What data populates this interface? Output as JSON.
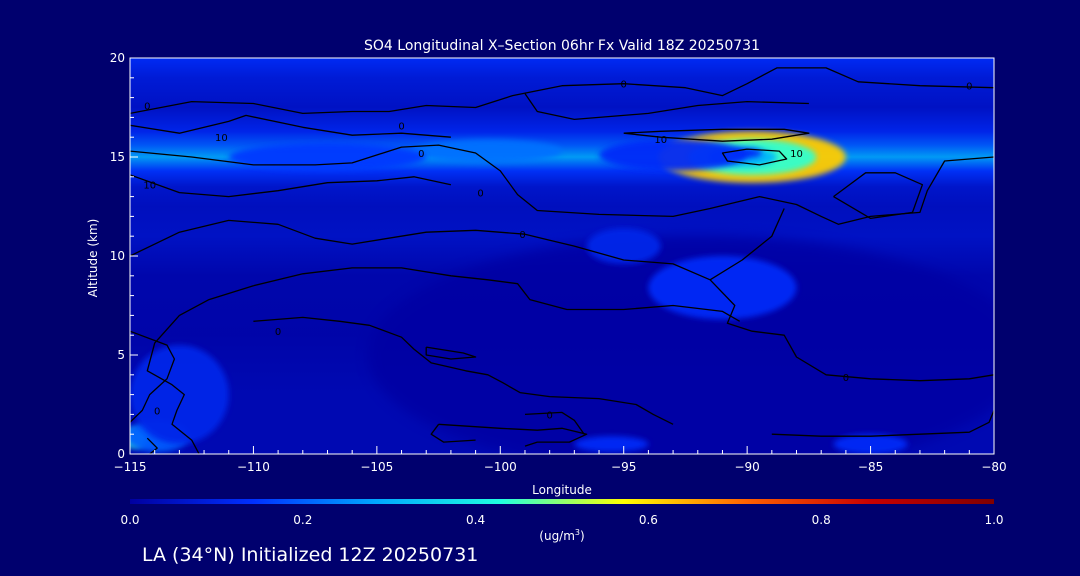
{
  "chart_data": {
    "type": "heatmap",
    "title": "SO4 Longitudinal X–Section 06hr  Fx Valid 18Z 20250731",
    "xlabel": "Longitude",
    "ylabel": "Altitude (km)",
    "xlim": [
      -115,
      -80
    ],
    "ylim": [
      0,
      20
    ],
    "x_ticks": [
      -115,
      -110,
      -105,
      -100,
      -95,
      -90,
      -85,
      -80
    ],
    "x_tick_labels": [
      "−115",
      "−110",
      "−105",
      "−100",
      "−95",
      "−90",
      "−85",
      "−80"
    ],
    "y_ticks": [
      0,
      5,
      10,
      15,
      20
    ],
    "y_tick_labels": [
      "0",
      "5",
      "10",
      "15",
      "20"
    ],
    "colorbar": {
      "ticks": [
        0.0,
        0.2,
        0.4,
        0.6,
        0.8,
        1.0
      ],
      "tick_labels": [
        "0.0",
        "0.2",
        "0.4",
        "0.6",
        "0.8",
        "1.0"
      ],
      "unit_prefix": "(ug/m",
      "unit_sup": "3",
      "unit_suffix": ")",
      "colors": [
        "#0000a0",
        "#0030ff",
        "#00a8ff",
        "#20ffe0",
        "#ffff00",
        "#ff6000",
        "#c80000",
        "#800000"
      ]
    },
    "contour_labels": [
      {
        "text": "0",
        "x": -114.3,
        "y": 17.6
      },
      {
        "text": "0",
        "x": -104.0,
        "y": 16.6
      },
      {
        "text": "0",
        "x": -103.2,
        "y": 15.2
      },
      {
        "text": "10",
        "x": -111.3,
        "y": 16.0
      },
      {
        "text": "10",
        "x": -114.2,
        "y": 13.6
      },
      {
        "text": "0",
        "x": -100.8,
        "y": 13.2
      },
      {
        "text": "0",
        "x": -99.1,
        "y": 11.1
      },
      {
        "text": "0",
        "x": -109.0,
        "y": 6.2
      },
      {
        "text": "0",
        "x": -95.0,
        "y": 18.7
      },
      {
        "text": "10",
        "x": -93.5,
        "y": 15.9
      },
      {
        "text": "10",
        "x": -88.0,
        "y": 15.2
      },
      {
        "text": "0",
        "x": -81.0,
        "y": 18.6
      },
      {
        "text": "0",
        "x": -86.0,
        "y": 3.9
      },
      {
        "text": "0",
        "x": -113.9,
        "y": 2.2
      },
      {
        "text": "0",
        "x": -98.0,
        "y": 2.0
      }
    ],
    "contour_lines": [
      [
        [
          -115,
          17.2
        ],
        [
          -112.5,
          17.8
        ],
        [
          -110,
          17.7
        ],
        [
          -108,
          17.2
        ],
        [
          -106,
          17.3
        ],
        [
          -104.5,
          17.3
        ],
        [
          -103,
          17.6
        ],
        [
          -101,
          17.5
        ],
        [
          -99.5,
          18.1
        ],
        [
          -97.5,
          18.6
        ],
        [
          -95,
          18.7
        ],
        [
          -92.5,
          18.5
        ],
        [
          -91,
          18.1
        ],
        [
          -90,
          18.7
        ],
        [
          -88.8,
          19.5
        ],
        [
          -86.8,
          19.5
        ],
        [
          -85.5,
          18.8
        ],
        [
          -83,
          18.6
        ],
        [
          -80,
          18.5
        ]
      ],
      [
        [
          -99,
          18.2
        ],
        [
          -98.5,
          17.3
        ],
        [
          -97,
          16.9
        ],
        [
          -94,
          17.2
        ],
        [
          -92,
          17.6
        ],
        [
          -90,
          17.8
        ],
        [
          -87.5,
          17.7
        ]
      ],
      [
        [
          -95,
          16.2
        ],
        [
          -93.5,
          16.3
        ],
        [
          -91,
          16.4
        ],
        [
          -88.5,
          16.4
        ],
        [
          -87.5,
          16.2
        ],
        [
          -89,
          15.9
        ],
        [
          -91,
          15.8
        ],
        [
          -93.5,
          16.0
        ],
        [
          -95,
          16.2
        ]
      ],
      [
        [
          -90,
          15.4
        ],
        [
          -88.7,
          15.3
        ],
        [
          -88.4,
          14.9
        ],
        [
          -89.5,
          14.6
        ],
        [
          -90.8,
          14.8
        ],
        [
          -91,
          15.2
        ],
        [
          -90,
          15.4
        ]
      ],
      [
        [
          -115,
          16.6
        ],
        [
          -113,
          16.2
        ],
        [
          -111,
          16.8
        ],
        [
          -110.3,
          17.1
        ],
        [
          -108,
          16.5
        ],
        [
          -106,
          16.1
        ],
        [
          -104,
          16.2
        ],
        [
          -102,
          16.0
        ]
      ],
      [
        [
          -115,
          15.3
        ],
        [
          -112.5,
          15.0
        ],
        [
          -110,
          14.6
        ],
        [
          -107.5,
          14.6
        ],
        [
          -106,
          14.7
        ],
        [
          -104,
          15.5
        ],
        [
          -102.5,
          15.6
        ],
        [
          -101,
          15.2
        ],
        [
          -100,
          14.3
        ],
        [
          -99.3,
          13.1
        ],
        [
          -98.5,
          12.3
        ],
        [
          -96,
          12.1
        ],
        [
          -93,
          12.0
        ],
        [
          -91.5,
          12.4
        ],
        [
          -89.5,
          13.0
        ],
        [
          -88,
          12.6
        ],
        [
          -87,
          12.0
        ],
        [
          -86.3,
          11.6
        ],
        [
          -85,
          12.0
        ],
        [
          -83,
          12.2
        ],
        [
          -82.7,
          13.3
        ],
        [
          -82,
          14.8
        ],
        [
          -80,
          15.0
        ]
      ],
      [
        [
          -115,
          14.1
        ],
        [
          -113,
          13.2
        ],
        [
          -111,
          13.0
        ],
        [
          -109,
          13.3
        ],
        [
          -107,
          13.7
        ],
        [
          -105,
          13.8
        ],
        [
          -103.5,
          14.0
        ],
        [
          -102,
          13.6
        ]
      ],
      [
        [
          -86.5,
          13.0
        ],
        [
          -85.2,
          14.2
        ],
        [
          -84,
          14.2
        ],
        [
          -82.9,
          13.6
        ],
        [
          -83.3,
          12.2
        ],
        [
          -85,
          11.9
        ],
        [
          -86.5,
          13.0
        ]
      ],
      [
        [
          -115,
          10.0
        ],
        [
          -113,
          11.2
        ],
        [
          -111,
          11.8
        ],
        [
          -109,
          11.6
        ],
        [
          -107.5,
          10.9
        ],
        [
          -106,
          10.6
        ],
        [
          -103,
          11.2
        ],
        [
          -101,
          11.3
        ],
        [
          -99,
          11.1
        ],
        [
          -98,
          10.8
        ],
        [
          -97,
          10.5
        ],
        [
          -95,
          9.8
        ],
        [
          -93,
          9.6
        ],
        [
          -91.5,
          8.8
        ],
        [
          -90.5,
          7.5
        ],
        [
          -90.8,
          6.6
        ],
        [
          -89.8,
          6.2
        ],
        [
          -88.5,
          6.0
        ],
        [
          -88,
          4.9
        ],
        [
          -86.8,
          4.0
        ],
        [
          -85,
          3.8
        ],
        [
          -83,
          3.7
        ],
        [
          -81,
          3.8
        ],
        [
          -80,
          4.0
        ]
      ],
      [
        [
          -91.5,
          8.8
        ],
        [
          -90.2,
          9.8
        ],
        [
          -89,
          11.0
        ],
        [
          -88.5,
          12.4
        ]
      ],
      [
        [
          -110,
          8.5
        ],
        [
          -108,
          9.1
        ],
        [
          -106,
          9.4
        ],
        [
          -104,
          9.4
        ],
        [
          -102,
          9.0
        ],
        [
          -100.5,
          8.8
        ],
        [
          -99.3,
          8.6
        ],
        [
          -98.8,
          7.8
        ],
        [
          -97.3,
          7.3
        ],
        [
          -95,
          7.3
        ],
        [
          -93,
          7.5
        ],
        [
          -91,
          7.2
        ],
        [
          -90.3,
          6.7
        ]
      ],
      [
        [
          -110,
          8.5
        ],
        [
          -111.8,
          7.8
        ],
        [
          -113,
          7.0
        ],
        [
          -114,
          5.6
        ],
        [
          -114.3,
          4.2
        ],
        [
          -113.3,
          3.5
        ],
        [
          -112.8,
          3.0
        ],
        [
          -113.1,
          2.2
        ],
        [
          -113.3,
          1.5
        ],
        [
          -112.5,
          0.7
        ],
        [
          -112.2,
          0
        ]
      ],
      [
        [
          -115,
          6.2
        ],
        [
          -113.5,
          5.5
        ],
        [
          -113.2,
          4.8
        ],
        [
          -113.5,
          3.8
        ],
        [
          -114.2,
          3.0
        ],
        [
          -114.5,
          2.2
        ],
        [
          -115,
          1.6
        ]
      ],
      [
        [
          -114.3,
          0.8
        ],
        [
          -113.9,
          0.3
        ],
        [
          -114.2,
          0.0
        ]
      ],
      [
        [
          -110,
          6.7
        ],
        [
          -108,
          6.9
        ],
        [
          -106.5,
          6.7
        ],
        [
          -105.3,
          6.5
        ],
        [
          -104,
          5.9
        ],
        [
          -103.5,
          5.3
        ],
        [
          -102.8,
          4.6
        ],
        [
          -101.4,
          4.2
        ],
        [
          -100.5,
          4.0
        ],
        [
          -99.9,
          3.6
        ],
        [
          -99.2,
          3.1
        ],
        [
          -98,
          2.9
        ],
        [
          -96,
          2.8
        ],
        [
          -94.5,
          2.5
        ],
        [
          -93.8,
          2.0
        ],
        [
          -93,
          1.5
        ]
      ],
      [
        [
          -103,
          5.4
        ],
        [
          -101.5,
          5.1
        ],
        [
          -101,
          4.9
        ],
        [
          -102,
          4.8
        ],
        [
          -103,
          5.0
        ],
        [
          -103,
          5.4
        ]
      ],
      [
        [
          -102.5,
          1.5
        ],
        [
          -100,
          1.3
        ],
        [
          -98.5,
          1.2
        ],
        [
          -97.5,
          1.3
        ],
        [
          -96.5,
          1.0
        ],
        [
          -97.2,
          0.6
        ],
        [
          -98.5,
          0.6
        ],
        [
          -99,
          0.4
        ]
      ],
      [
        [
          -99,
          2.0
        ],
        [
          -97.5,
          2.1
        ],
        [
          -97,
          1.7
        ],
        [
          -96.6,
          1.0
        ]
      ],
      [
        [
          -102.5,
          1.5
        ],
        [
          -102.8,
          1.0
        ],
        [
          -102.3,
          0.6
        ],
        [
          -101,
          0.7
        ]
      ],
      [
        [
          -89,
          1.0
        ],
        [
          -87,
          0.9
        ],
        [
          -85,
          0.9
        ],
        [
          -83,
          1.0
        ],
        [
          -81,
          1.1
        ],
        [
          -80.2,
          1.6
        ],
        [
          -80,
          2.2
        ]
      ]
    ],
    "hotspots": [
      {
        "x": -89.8,
        "y": 15.0,
        "rx": 3.8,
        "ry": 1.3,
        "v": 0.28
      },
      {
        "x": -89.8,
        "y": 15.0,
        "rx": 2.6,
        "ry": 0.9,
        "v": 0.2
      },
      {
        "x": -90.2,
        "y": 15.0,
        "rx": 1.4,
        "ry": 0.5,
        "v": 0.14
      },
      {
        "x": -90.0,
        "y": 15.2,
        "rx": 0.6,
        "ry": 0.25,
        "v": 0.06
      },
      {
        "x": -93.0,
        "y": 15.1,
        "rx": 3.0,
        "ry": 0.8,
        "v": 0.06
      },
      {
        "x": -100.5,
        "y": 15.3,
        "rx": 3.0,
        "ry": 0.6,
        "v": 0.1
      },
      {
        "x": -107.0,
        "y": 15.0,
        "rx": 4.0,
        "ry": 0.7,
        "v": 0.07
      },
      {
        "x": -114.8,
        "y": 0.8,
        "rx": 0.5,
        "ry": 0.5,
        "v": 0.2
      },
      {
        "x": -113.9,
        "y": 0.9,
        "rx": 1.3,
        "ry": 0.8,
        "v": 0.09
      },
      {
        "x": -113.0,
        "y": 3.0,
        "rx": 2.0,
        "ry": 2.5,
        "v": 0.05
      },
      {
        "x": -91.0,
        "y": 8.4,
        "rx": 3.0,
        "ry": 1.6,
        "v": 0.06
      },
      {
        "x": -95.0,
        "y": 10.5,
        "rx": 1.5,
        "ry": 0.9,
        "v": 0.05
      },
      {
        "x": -85.0,
        "y": 0.5,
        "rx": 1.5,
        "ry": 0.5,
        "v": 0.06
      },
      {
        "x": -95.5,
        "y": 0.5,
        "rx": 1.5,
        "ry": 0.4,
        "v": 0.06
      }
    ]
  },
  "footer": {
    "location_text": "LA (34°N) Initialized 12Z 20250731"
  }
}
